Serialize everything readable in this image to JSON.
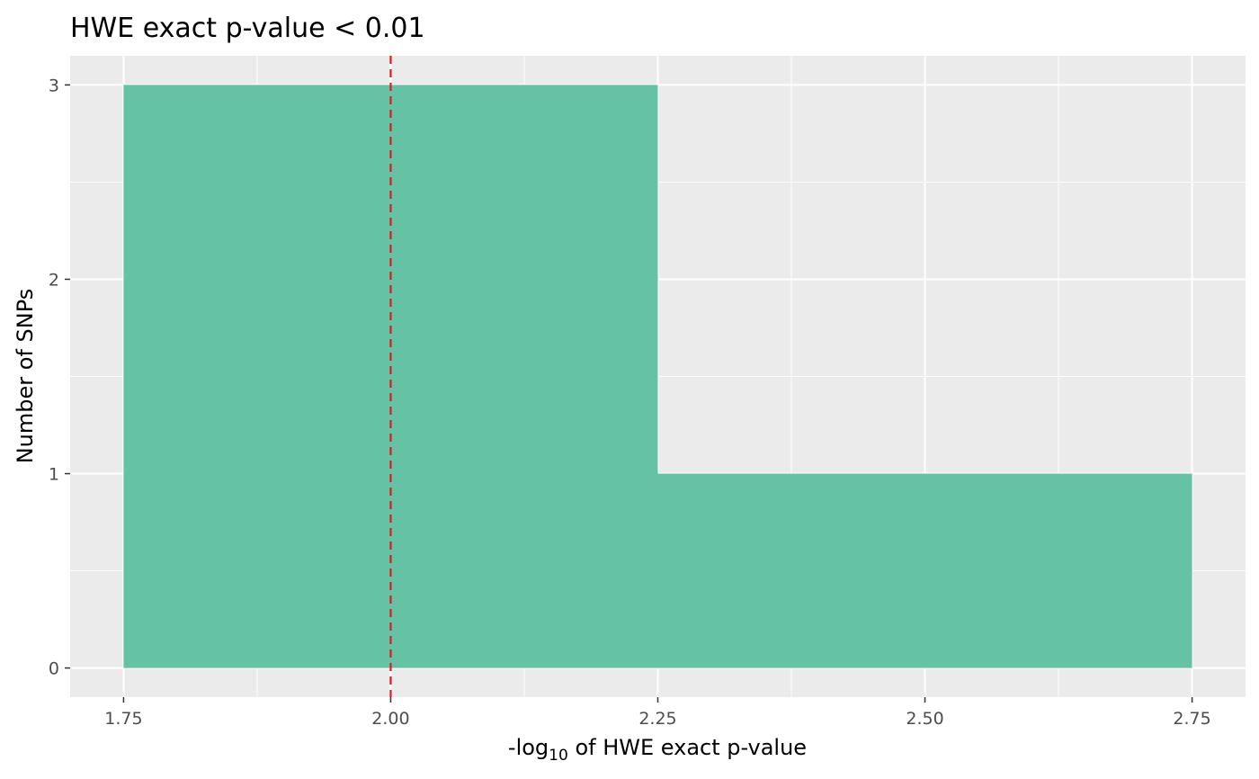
{
  "chart_data": {
    "type": "bar",
    "title": "HWE exact p-value < 0.01",
    "xlabel_prefix": "-log",
    "xlabel_subscript": "10",
    "xlabel_suffix": " of HWE exact p-value",
    "ylabel": "Number of SNPs",
    "bins": [
      {
        "x_start": 1.75,
        "x_end": 2.25,
        "count": 3
      },
      {
        "x_start": 2.25,
        "x_end": 2.75,
        "count": 1
      }
    ],
    "threshold_line": {
      "x": 2.0,
      "color": "#e31a1c",
      "style": "dashed"
    },
    "xlim": [
      1.7,
      2.8
    ],
    "ylim": [
      -0.15,
      3.15
    ],
    "x_ticks": [
      1.75,
      2.0,
      2.25,
      2.5,
      2.75
    ],
    "x_tick_labels": [
      "1.75",
      "2.00",
      "2.25",
      "2.50",
      "2.75"
    ],
    "y_ticks": [
      0,
      1,
      2,
      3
    ],
    "y_tick_labels": [
      "0",
      "1",
      "2",
      "3"
    ],
    "bar_color": "#66c2a5",
    "panel_background": "#ebebeb",
    "grid": true,
    "legend": "none"
  }
}
